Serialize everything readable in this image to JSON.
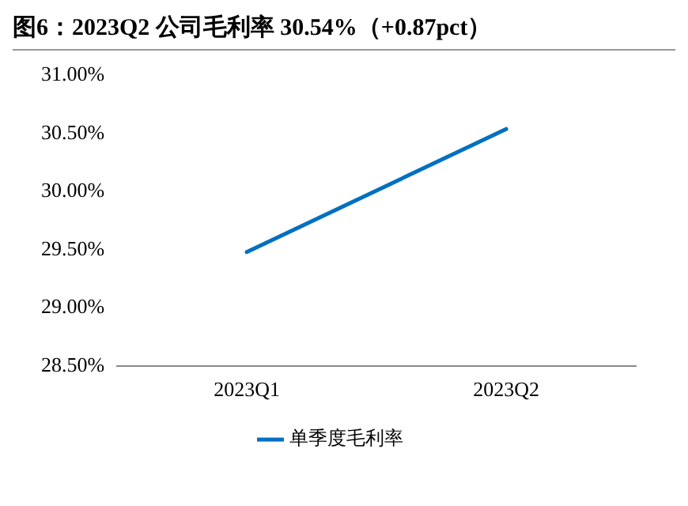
{
  "chart_data": {
    "type": "line",
    "title": "图6：2023Q2 公司毛利率 30.54%（+0.87pct）",
    "categories": [
      "2023Q1",
      "2023Q2"
    ],
    "series": [
      {
        "name": "单季度毛利率",
        "color": "#0070c0",
        "values": [
          29.48,
          30.54
        ]
      }
    ],
    "ylim": [
      28.5,
      31
    ],
    "yticks": [
      {
        "value": 28.5,
        "label": "28.50%"
      },
      {
        "value": 29,
        "label": "29.00%"
      },
      {
        "value": 29.5,
        "label": "29.50%"
      },
      {
        "value": 30,
        "label": "30.00%"
      },
      {
        "value": 30.5,
        "label": "30.50%"
      },
      {
        "value": 31,
        "label": "31.00%"
      }
    ],
    "grid": false,
    "legend": "bottom",
    "marker": "none",
    "line_style": "solid"
  }
}
